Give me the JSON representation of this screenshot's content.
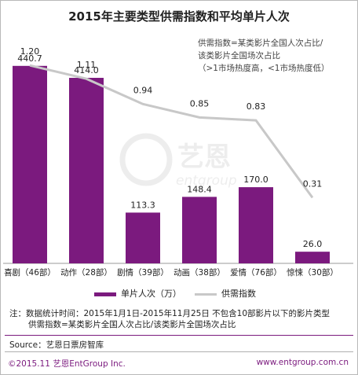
{
  "chart_data": {
    "type": "bar",
    "title": "2015年主要类型供需指数和平均单片人次",
    "categories": [
      "喜剧（46部）",
      "动作（28部）",
      "剧情（39部）",
      "动画（38部）",
      "爱情（76部）",
      "惊悚（30部）"
    ],
    "series": [
      {
        "name": "单片人次（万）",
        "type": "bar",
        "color": "#7b1a7e",
        "values": [
          440.7,
          414.0,
          113.3,
          148.4,
          170.0,
          26.0
        ],
        "labels": [
          "440.7",
          "414.0",
          "113.3",
          "148.4",
          "170.0",
          "26.0"
        ]
      },
      {
        "name": "供需指数",
        "type": "line",
        "color": "#c8c8c8",
        "values": [
          1.2,
          1.11,
          0.94,
          0.85,
          0.83,
          0.31
        ],
        "labels": [
          "1.20",
          "1.11",
          "0.94",
          "0.85",
          "0.83",
          "0.31"
        ]
      }
    ],
    "bar_range": [
      0,
      500
    ],
    "line_range": [
      0,
      1.5
    ],
    "legend_position": "bottom",
    "grid": false
  },
  "annotation": {
    "formula_lines": [
      "供需指数=某类影片全国人次占比/",
      "该类影片全国场次占比",
      "（>1市场热度高，<1市场热度低）"
    ]
  },
  "notes": {
    "line1": "注：数据统计时间：2015年1月1日-2015年11月25日    不包含10部影片以下的影片类型",
    "line2": "供需指数=某类影片全国人次占比/该类影片全国场次占比"
  },
  "source": "Source：艺恩日票房智库",
  "footer": {
    "copyright": "©2015.11 艺恩EntGroup Inc.",
    "website": "www.entgroup.com.cn"
  },
  "watermark": {
    "name": "艺恩",
    "sub": "entgroup"
  },
  "colors": {
    "bar": "#7b1a7e",
    "line": "#c8c8c8",
    "accent": "#7b1a7e"
  }
}
